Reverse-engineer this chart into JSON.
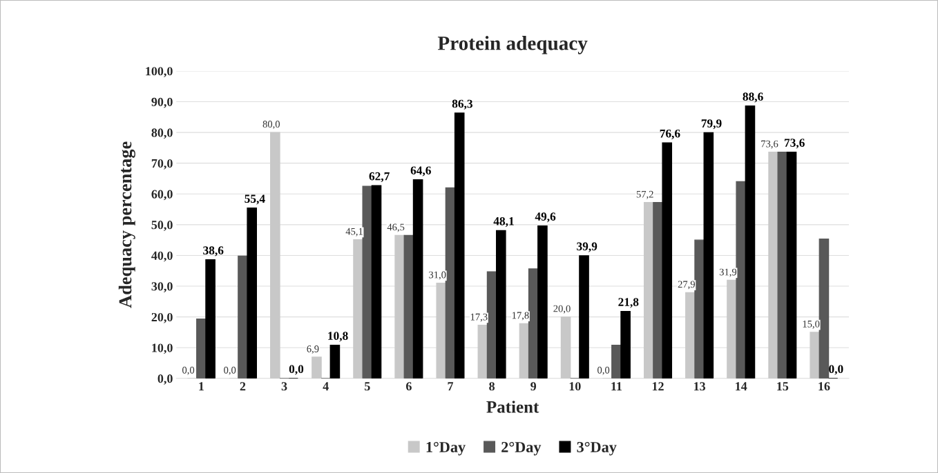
{
  "chart_data": {
    "type": "bar",
    "title": "Protein adequacy",
    "xlabel": "Patient",
    "ylabel": "Adequacy percentage",
    "categories": [
      "1",
      "2",
      "3",
      "4",
      "5",
      "6",
      "7",
      "8",
      "9",
      "10",
      "11",
      "12",
      "13",
      "14",
      "15",
      "16"
    ],
    "series": [
      {
        "name": "1°Day",
        "color": "#c8c8c8",
        "values": [
          0.0,
          0.0,
          80.0,
          6.9,
          45.1,
          46.5,
          31.0,
          17.3,
          17.8,
          20.0,
          0.0,
          57.2,
          27.9,
          31.9,
          73.6,
          15.0
        ],
        "value_labels": [
          "0,0",
          "0,0",
          "80,0",
          "6,9",
          "45,1",
          "46,5",
          "31,0",
          "17,3",
          "17,8",
          "20,0",
          "0,0",
          "57,2",
          "27,9",
          "31,9",
          "73,6",
          "15,0"
        ]
      },
      {
        "name": "2°Day",
        "color": "#595959",
        "values": [
          19.3,
          39.8,
          0,
          0,
          62.5,
          46.5,
          62.0,
          34.7,
          35.6,
          0,
          10.8,
          57.2,
          45.0,
          64.0,
          73.6,
          45.3
        ]
      },
      {
        "name": "3°Day",
        "color": "#000000",
        "values": [
          38.6,
          55.4,
          0.0,
          10.8,
          62.7,
          64.6,
          86.3,
          48.1,
          49.6,
          39.9,
          21.8,
          76.6,
          79.9,
          88.6,
          73.6,
          0.0
        ],
        "value_labels": [
          "38,6",
          "55,4",
          "0,0",
          "10,8",
          "62,7",
          "64,6",
          "86,3",
          "48,1",
          "49,6",
          "39,9",
          "21,8",
          "76,6",
          "79,9",
          "88,6",
          "73,6",
          "0,0"
        ]
      }
    ],
    "ylim": [
      0,
      100
    ],
    "yticks": [
      {
        "value": 0,
        "label": "0,0"
      },
      {
        "value": 10,
        "label": "10,0"
      },
      {
        "value": 20,
        "label": "20,0"
      },
      {
        "value": 30,
        "label": "30,0"
      },
      {
        "value": 40,
        "label": "40,0"
      },
      {
        "value": 50,
        "label": "50,0"
      },
      {
        "value": 60,
        "label": "60,0"
      },
      {
        "value": 70,
        "label": "70,0"
      },
      {
        "value": 80,
        "label": "80,0"
      },
      {
        "value": 90,
        "label": "90,0"
      },
      {
        "value": 100,
        "label": "100,0"
      }
    ],
    "grid": "y",
    "legend": "bottom"
  }
}
